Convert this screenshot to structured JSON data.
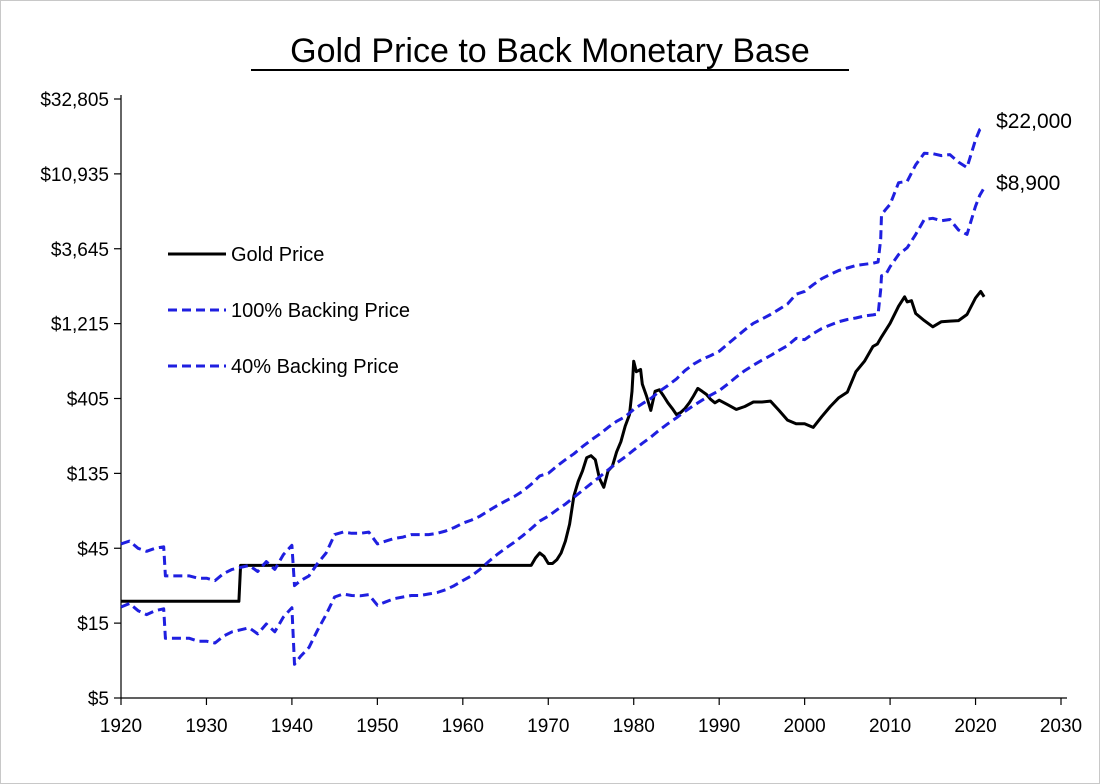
{
  "chart_data": {
    "type": "line",
    "title": "Gold Price to Back Monetary Base",
    "xlabel": "",
    "ylabel": "",
    "y_scale": "log",
    "xlim": [
      1920,
      2030
    ],
    "ylim": [
      5,
      32805
    ],
    "x_ticks": [
      1920,
      1930,
      1940,
      1950,
      1960,
      1970,
      1980,
      1990,
      2000,
      2010,
      2020,
      2030
    ],
    "x_tick_labels": [
      "1920",
      "1930",
      "1940",
      "1950",
      "1960",
      "1970",
      "1980",
      "1990",
      "2000",
      "2010",
      "2020",
      "2030"
    ],
    "y_ticks": [
      5,
      15,
      45,
      135,
      405,
      1215,
      3645,
      10935,
      32805
    ],
    "y_tick_labels": [
      "$5",
      "$15",
      "$45",
      "$135",
      "$405",
      "$1,215",
      "$3,645",
      "$10,935",
      "$32,805"
    ],
    "grid": false,
    "legend_position": "left",
    "series": [
      {
        "name": "Gold Price",
        "color": "#000000",
        "style": "solid",
        "points": [
          [
            1920,
            20.67
          ],
          [
            1933.8,
            20.67
          ],
          [
            1934,
            35
          ],
          [
            1968,
            35
          ],
          [
            1968.5,
            39
          ],
          [
            1969,
            42
          ],
          [
            1969.5,
            40
          ],
          [
            1970,
            36
          ],
          [
            1970.5,
            36
          ],
          [
            1971,
            38
          ],
          [
            1971.5,
            42
          ],
          [
            1972,
            50
          ],
          [
            1972.5,
            64
          ],
          [
            1973,
            97
          ],
          [
            1973.5,
            120
          ],
          [
            1974,
            140
          ],
          [
            1974.5,
            170
          ],
          [
            1975,
            175
          ],
          [
            1975.5,
            165
          ],
          [
            1976,
            125
          ],
          [
            1976.5,
            110
          ],
          [
            1977,
            140
          ],
          [
            1977.5,
            150
          ],
          [
            1978,
            185
          ],
          [
            1978.5,
            215
          ],
          [
            1979,
            270
          ],
          [
            1979.5,
            320
          ],
          [
            1979.8,
            450
          ],
          [
            1980,
            700
          ],
          [
            1980.3,
            600
          ],
          [
            1980.8,
            620
          ],
          [
            1981,
            500
          ],
          [
            1981.5,
            420
          ],
          [
            1982,
            340
          ],
          [
            1982.5,
            450
          ],
          [
            1983,
            460
          ],
          [
            1983.5,
            420
          ],
          [
            1984,
            380
          ],
          [
            1984.5,
            350
          ],
          [
            1985,
            320
          ],
          [
            1985.5,
            330
          ],
          [
            1986,
            350
          ],
          [
            1986.5,
            380
          ],
          [
            1987,
            420
          ],
          [
            1987.5,
            470
          ],
          [
            1988,
            450
          ],
          [
            1988.5,
            430
          ],
          [
            1989,
            400
          ],
          [
            1989.5,
            380
          ],
          [
            1990,
            395
          ],
          [
            1991,
            370
          ],
          [
            1992,
            345
          ],
          [
            1993,
            360
          ],
          [
            1994,
            385
          ],
          [
            1995,
            385
          ],
          [
            1996,
            390
          ],
          [
            1997,
            340
          ],
          [
            1998,
            295
          ],
          [
            1999,
            280
          ],
          [
            2000,
            280
          ],
          [
            2001,
            265
          ],
          [
            2002,
            310
          ],
          [
            2003,
            360
          ],
          [
            2004,
            410
          ],
          [
            2005,
            445
          ],
          [
            2006,
            600
          ],
          [
            2007,
            700
          ],
          [
            2008,
            870
          ],
          [
            2008.5,
            900
          ],
          [
            2009,
            1000
          ],
          [
            2010,
            1220
          ],
          [
            2011,
            1570
          ],
          [
            2011.7,
            1800
          ],
          [
            2012,
            1670
          ],
          [
            2012.5,
            1700
          ],
          [
            2013,
            1410
          ],
          [
            2014,
            1270
          ],
          [
            2015,
            1160
          ],
          [
            2016,
            1250
          ],
          [
            2017,
            1260
          ],
          [
            2018,
            1270
          ],
          [
            2019,
            1390
          ],
          [
            2020,
            1770
          ],
          [
            2020.6,
            1950
          ],
          [
            2021,
            1800
          ]
        ]
      },
      {
        "name": "100% Backing Price",
        "color": "#1f1fe0",
        "style": "dashed",
        "points": [
          [
            1920,
            48
          ],
          [
            1921,
            50
          ],
          [
            1922,
            45
          ],
          [
            1923,
            43
          ],
          [
            1924,
            45
          ],
          [
            1925,
            46
          ],
          [
            1925.2,
            30
          ],
          [
            1927,
            30
          ],
          [
            1928,
            30
          ],
          [
            1929,
            29
          ],
          [
            1930,
            29
          ],
          [
            1931,
            28
          ],
          [
            1932,
            31
          ],
          [
            1933,
            33
          ],
          [
            1934,
            34
          ],
          [
            1935,
            35
          ],
          [
            1936,
            32
          ],
          [
            1937,
            37
          ],
          [
            1938,
            33
          ],
          [
            1939,
            41
          ],
          [
            1940,
            47
          ],
          [
            1940.3,
            26
          ],
          [
            1941,
            28
          ],
          [
            1942,
            30
          ],
          [
            1943,
            36
          ],
          [
            1944,
            42
          ],
          [
            1945,
            55
          ],
          [
            1946,
            57
          ],
          [
            1947,
            56
          ],
          [
            1948,
            56
          ],
          [
            1949,
            57
          ],
          [
            1950,
            48
          ],
          [
            1951,
            50
          ],
          [
            1952,
            52
          ],
          [
            1953,
            53
          ],
          [
            1954,
            55
          ],
          [
            1955,
            55
          ],
          [
            1956,
            55
          ],
          [
            1957,
            56
          ],
          [
            1958,
            58
          ],
          [
            1959,
            61
          ],
          [
            1960,
            65
          ],
          [
            1961,
            68
          ],
          [
            1962,
            72
          ],
          [
            1963,
            78
          ],
          [
            1964,
            84
          ],
          [
            1965,
            90
          ],
          [
            1966,
            96
          ],
          [
            1967,
            104
          ],
          [
            1968,
            115
          ],
          [
            1969,
            130
          ],
          [
            1970,
            135
          ],
          [
            1971,
            150
          ],
          [
            1972,
            165
          ],
          [
            1973,
            180
          ],
          [
            1974,
            200
          ],
          [
            1975,
            220
          ],
          [
            1976,
            240
          ],
          [
            1977,
            265
          ],
          [
            1978,
            290
          ],
          [
            1979,
            310
          ],
          [
            1980,
            345
          ],
          [
            1981,
            375
          ],
          [
            1982,
            405
          ],
          [
            1983,
            450
          ],
          [
            1984,
            490
          ],
          [
            1985,
            540
          ],
          [
            1986,
            610
          ],
          [
            1987,
            670
          ],
          [
            1988,
            720
          ],
          [
            1989,
            760
          ],
          [
            1990,
            810
          ],
          [
            1991,
            900
          ],
          [
            1992,
            1000
          ],
          [
            1993,
            1110
          ],
          [
            1994,
            1220
          ],
          [
            1995,
            1300
          ],
          [
            1996,
            1390
          ],
          [
            1997,
            1500
          ],
          [
            1998,
            1620
          ],
          [
            1999,
            1870
          ],
          [
            2000,
            1950
          ],
          [
            2001,
            2150
          ],
          [
            2002,
            2350
          ],
          [
            2003,
            2500
          ],
          [
            2004,
            2650
          ],
          [
            2005,
            2750
          ],
          [
            2006,
            2850
          ],
          [
            2007,
            2900
          ],
          [
            2008,
            2950
          ],
          [
            2008.6,
            3000
          ],
          [
            2008.9,
            4200
          ],
          [
            2009,
            6000
          ],
          [
            2009.5,
            6500
          ],
          [
            2010,
            7000
          ],
          [
            2011,
            9600
          ],
          [
            2012,
            9800
          ],
          [
            2013,
            12500
          ],
          [
            2014,
            14800
          ],
          [
            2015,
            14700
          ],
          [
            2016,
            14300
          ],
          [
            2017,
            14500
          ],
          [
            2018,
            13000
          ],
          [
            2019,
            12000
          ],
          [
            2020,
            18000
          ],
          [
            2020.5,
            21000
          ],
          [
            2021,
            22000
          ]
        ]
      },
      {
        "name": "40% Backing Price",
        "color": "#1f1fe0",
        "style": "dashed",
        "points": [
          [
            1920,
            19
          ],
          [
            1921,
            20
          ],
          [
            1922,
            18
          ],
          [
            1923,
            17
          ],
          [
            1924,
            18
          ],
          [
            1925,
            18.5
          ],
          [
            1925.2,
            12
          ],
          [
            1927,
            12
          ],
          [
            1928,
            12
          ],
          [
            1929,
            11.5
          ],
          [
            1930,
            11.5
          ],
          [
            1931,
            11.2
          ],
          [
            1932,
            12.4
          ],
          [
            1933,
            13.2
          ],
          [
            1934,
            13.6
          ],
          [
            1935,
            14
          ],
          [
            1936,
            12.8
          ],
          [
            1937,
            14.8
          ],
          [
            1938,
            13.2
          ],
          [
            1939,
            16.4
          ],
          [
            1940,
            18.8
          ],
          [
            1940.3,
            8.2
          ],
          [
            1941,
            9.2
          ],
          [
            1942,
            10.5
          ],
          [
            1943,
            13.5
          ],
          [
            1944,
            17
          ],
          [
            1945,
            22
          ],
          [
            1946,
            23
          ],
          [
            1947,
            22.5
          ],
          [
            1948,
            22.4
          ],
          [
            1949,
            22.8
          ],
          [
            1950,
            19.5
          ],
          [
            1951,
            20.5
          ],
          [
            1952,
            21.5
          ],
          [
            1953,
            22
          ],
          [
            1954,
            22.5
          ],
          [
            1955,
            22.5
          ],
          [
            1956,
            23
          ],
          [
            1957,
            23.5
          ],
          [
            1958,
            24.5
          ],
          [
            1959,
            26
          ],
          [
            1960,
            28
          ],
          [
            1961,
            30
          ],
          [
            1962,
            33
          ],
          [
            1963,
            37
          ],
          [
            1964,
            41
          ],
          [
            1965,
            45
          ],
          [
            1966,
            49
          ],
          [
            1967,
            54
          ],
          [
            1968,
            60
          ],
          [
            1969,
            67
          ],
          [
            1970,
            72
          ],
          [
            1971,
            79
          ],
          [
            1972,
            86
          ],
          [
            1973,
            95
          ],
          [
            1974,
            105
          ],
          [
            1975,
            116
          ],
          [
            1976,
            128
          ],
          [
            1977,
            142
          ],
          [
            1978,
            157
          ],
          [
            1979,
            172
          ],
          [
            1980,
            190
          ],
          [
            1981,
            210
          ],
          [
            1982,
            230
          ],
          [
            1983,
            255
          ],
          [
            1984,
            280
          ],
          [
            1985,
            305
          ],
          [
            1986,
            335
          ],
          [
            1987,
            365
          ],
          [
            1988,
            395
          ],
          [
            1989,
            425
          ],
          [
            1990,
            455
          ],
          [
            1991,
            500
          ],
          [
            1992,
            555
          ],
          [
            1993,
            610
          ],
          [
            1994,
            660
          ],
          [
            1995,
            710
          ],
          [
            1996,
            760
          ],
          [
            1997,
            820
          ],
          [
            1998,
            880
          ],
          [
            1999,
            980
          ],
          [
            2000,
            960
          ],
          [
            2001,
            1050
          ],
          [
            2002,
            1130
          ],
          [
            2003,
            1190
          ],
          [
            2004,
            1250
          ],
          [
            2005,
            1290
          ],
          [
            2006,
            1320
          ],
          [
            2007,
            1360
          ],
          [
            2008,
            1380
          ],
          [
            2008.6,
            1400
          ],
          [
            2008.9,
            2000
          ],
          [
            2009,
            2450
          ],
          [
            2009.5,
            2500
          ],
          [
            2010,
            2800
          ],
          [
            2011,
            3350
          ],
          [
            2012,
            3700
          ],
          [
            2013,
            4500
          ],
          [
            2014,
            5600
          ],
          [
            2015,
            5700
          ],
          [
            2016,
            5500
          ],
          [
            2017,
            5600
          ],
          [
            2018,
            4800
          ],
          [
            2019,
            4500
          ],
          [
            2020,
            6800
          ],
          [
            2020.5,
            8000
          ],
          [
            2021,
            8900
          ]
        ]
      }
    ],
    "annotations": [
      {
        "text": "$22,000",
        "series": "100% Backing Price"
      },
      {
        "text": "$8,900",
        "series": "40% Backing Price"
      }
    ]
  }
}
